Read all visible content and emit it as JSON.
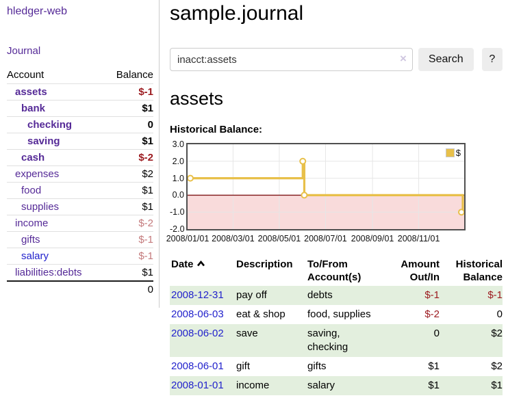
{
  "app": {
    "title": "hledger-web"
  },
  "sidebar": {
    "journal_link": "Journal",
    "accounts_table": {
      "headers": {
        "account": "Account",
        "balance": "Balance"
      },
      "rows": [
        {
          "name": "assets",
          "balance": "$-1",
          "depth": 1,
          "bold": true,
          "balance_color": "negative"
        },
        {
          "name": "bank",
          "balance": "$1",
          "depth": 2,
          "bold": true,
          "balance_color": "normal"
        },
        {
          "name": "checking",
          "balance": "0",
          "depth": 3,
          "bold": true,
          "balance_color": "normal"
        },
        {
          "name": "saving",
          "balance": "$1",
          "depth": 3,
          "bold": true,
          "balance_color": "normal"
        },
        {
          "name": "cash",
          "balance": "$-2",
          "depth": 2,
          "bold": true,
          "balance_color": "negative"
        },
        {
          "name": "expenses",
          "balance": "$2",
          "depth": 1,
          "bold": false,
          "balance_color": "normal"
        },
        {
          "name": "food",
          "balance": "$1",
          "depth": 2,
          "bold": false,
          "balance_color": "normal"
        },
        {
          "name": "supplies",
          "balance": "$1",
          "depth": 2,
          "bold": false,
          "balance_color": "normal"
        },
        {
          "name": "income",
          "balance": "$-2",
          "depth": 1,
          "bold": false,
          "balance_color": "negative-dim"
        },
        {
          "name": "gifts",
          "balance": "$-1",
          "depth": 2,
          "bold": false,
          "balance_color": "negative-dim"
        },
        {
          "name": "salary",
          "balance": "$-1",
          "depth": 2,
          "bold": false,
          "balance_color": "negative-dim",
          "link_color": "blue"
        },
        {
          "name": "liabilities:debts",
          "balance": "$1",
          "depth": 1,
          "bold": false,
          "balance_color": "normal"
        }
      ],
      "total": "0"
    }
  },
  "main": {
    "title": "sample.journal",
    "search": {
      "value": "inacct:assets",
      "clear_icon": "×",
      "button_label": "Search",
      "help_label": "?"
    },
    "account_heading": "assets",
    "chart_heading": "Historical Balance:"
  },
  "chart_data": {
    "type": "line",
    "title": "Historical Balance:",
    "step": true,
    "series": [
      {
        "name": "$",
        "color": "#e8c04a",
        "points": [
          [
            "2008-01-01",
            1
          ],
          [
            "2008-06-01",
            2
          ],
          [
            "2008-06-03",
            0
          ],
          [
            "2008-12-31",
            -1
          ]
        ]
      }
    ],
    "ylim": [
      -2,
      3
    ],
    "y_ticks": [
      "3.0",
      "2.0",
      "1.0",
      "0.0",
      "-1.0",
      "-2.0"
    ],
    "x_ticks": [
      "2008/01/01",
      "2008/03/01",
      "2008/05/01",
      "2008/07/01",
      "2008/09/01",
      "2008/11/01"
    ],
    "grid": true,
    "zero_line_color": "#7e1517",
    "negative_region_color": "#f9dbdb",
    "legend": {
      "label": "$",
      "position": "top-right"
    }
  },
  "transactions": {
    "headers": [
      {
        "label": "Date",
        "sorted": "asc"
      },
      {
        "label": "Description"
      },
      {
        "label": "To/From Account(s)"
      },
      {
        "label": "Amount Out/In",
        "align": "right"
      },
      {
        "label": "Historical Balance",
        "align": "right"
      }
    ],
    "rows": [
      {
        "date": "2008-12-31",
        "description": "pay off",
        "accounts": "debts",
        "amount": "$-1",
        "balance": "$-1"
      },
      {
        "date": "2008-06-03",
        "description": "eat & shop",
        "accounts": "food, supplies",
        "amount": "$-2",
        "balance": "0"
      },
      {
        "date": "2008-06-02",
        "description": "save",
        "accounts": "saving, checking",
        "amount": "0",
        "balance": "$2"
      },
      {
        "date": "2008-06-01",
        "description": "gift",
        "accounts": "gifts",
        "amount": "$1",
        "balance": "$2"
      },
      {
        "date": "2008-01-01",
        "description": "income",
        "accounts": "salary",
        "amount": "$1",
        "balance": "$1"
      }
    ]
  },
  "colors": {
    "link_purple": "#552a97",
    "link_blue": "#2222cc",
    "negative": "#9c1b20",
    "negative_dim": "#c47a7c",
    "row_stripe_green": "#e3efde",
    "chart_line_gold": "#e8c04a",
    "chart_negative_pink": "#f9dbdb",
    "chart_zero_line": "#7e1517"
  }
}
